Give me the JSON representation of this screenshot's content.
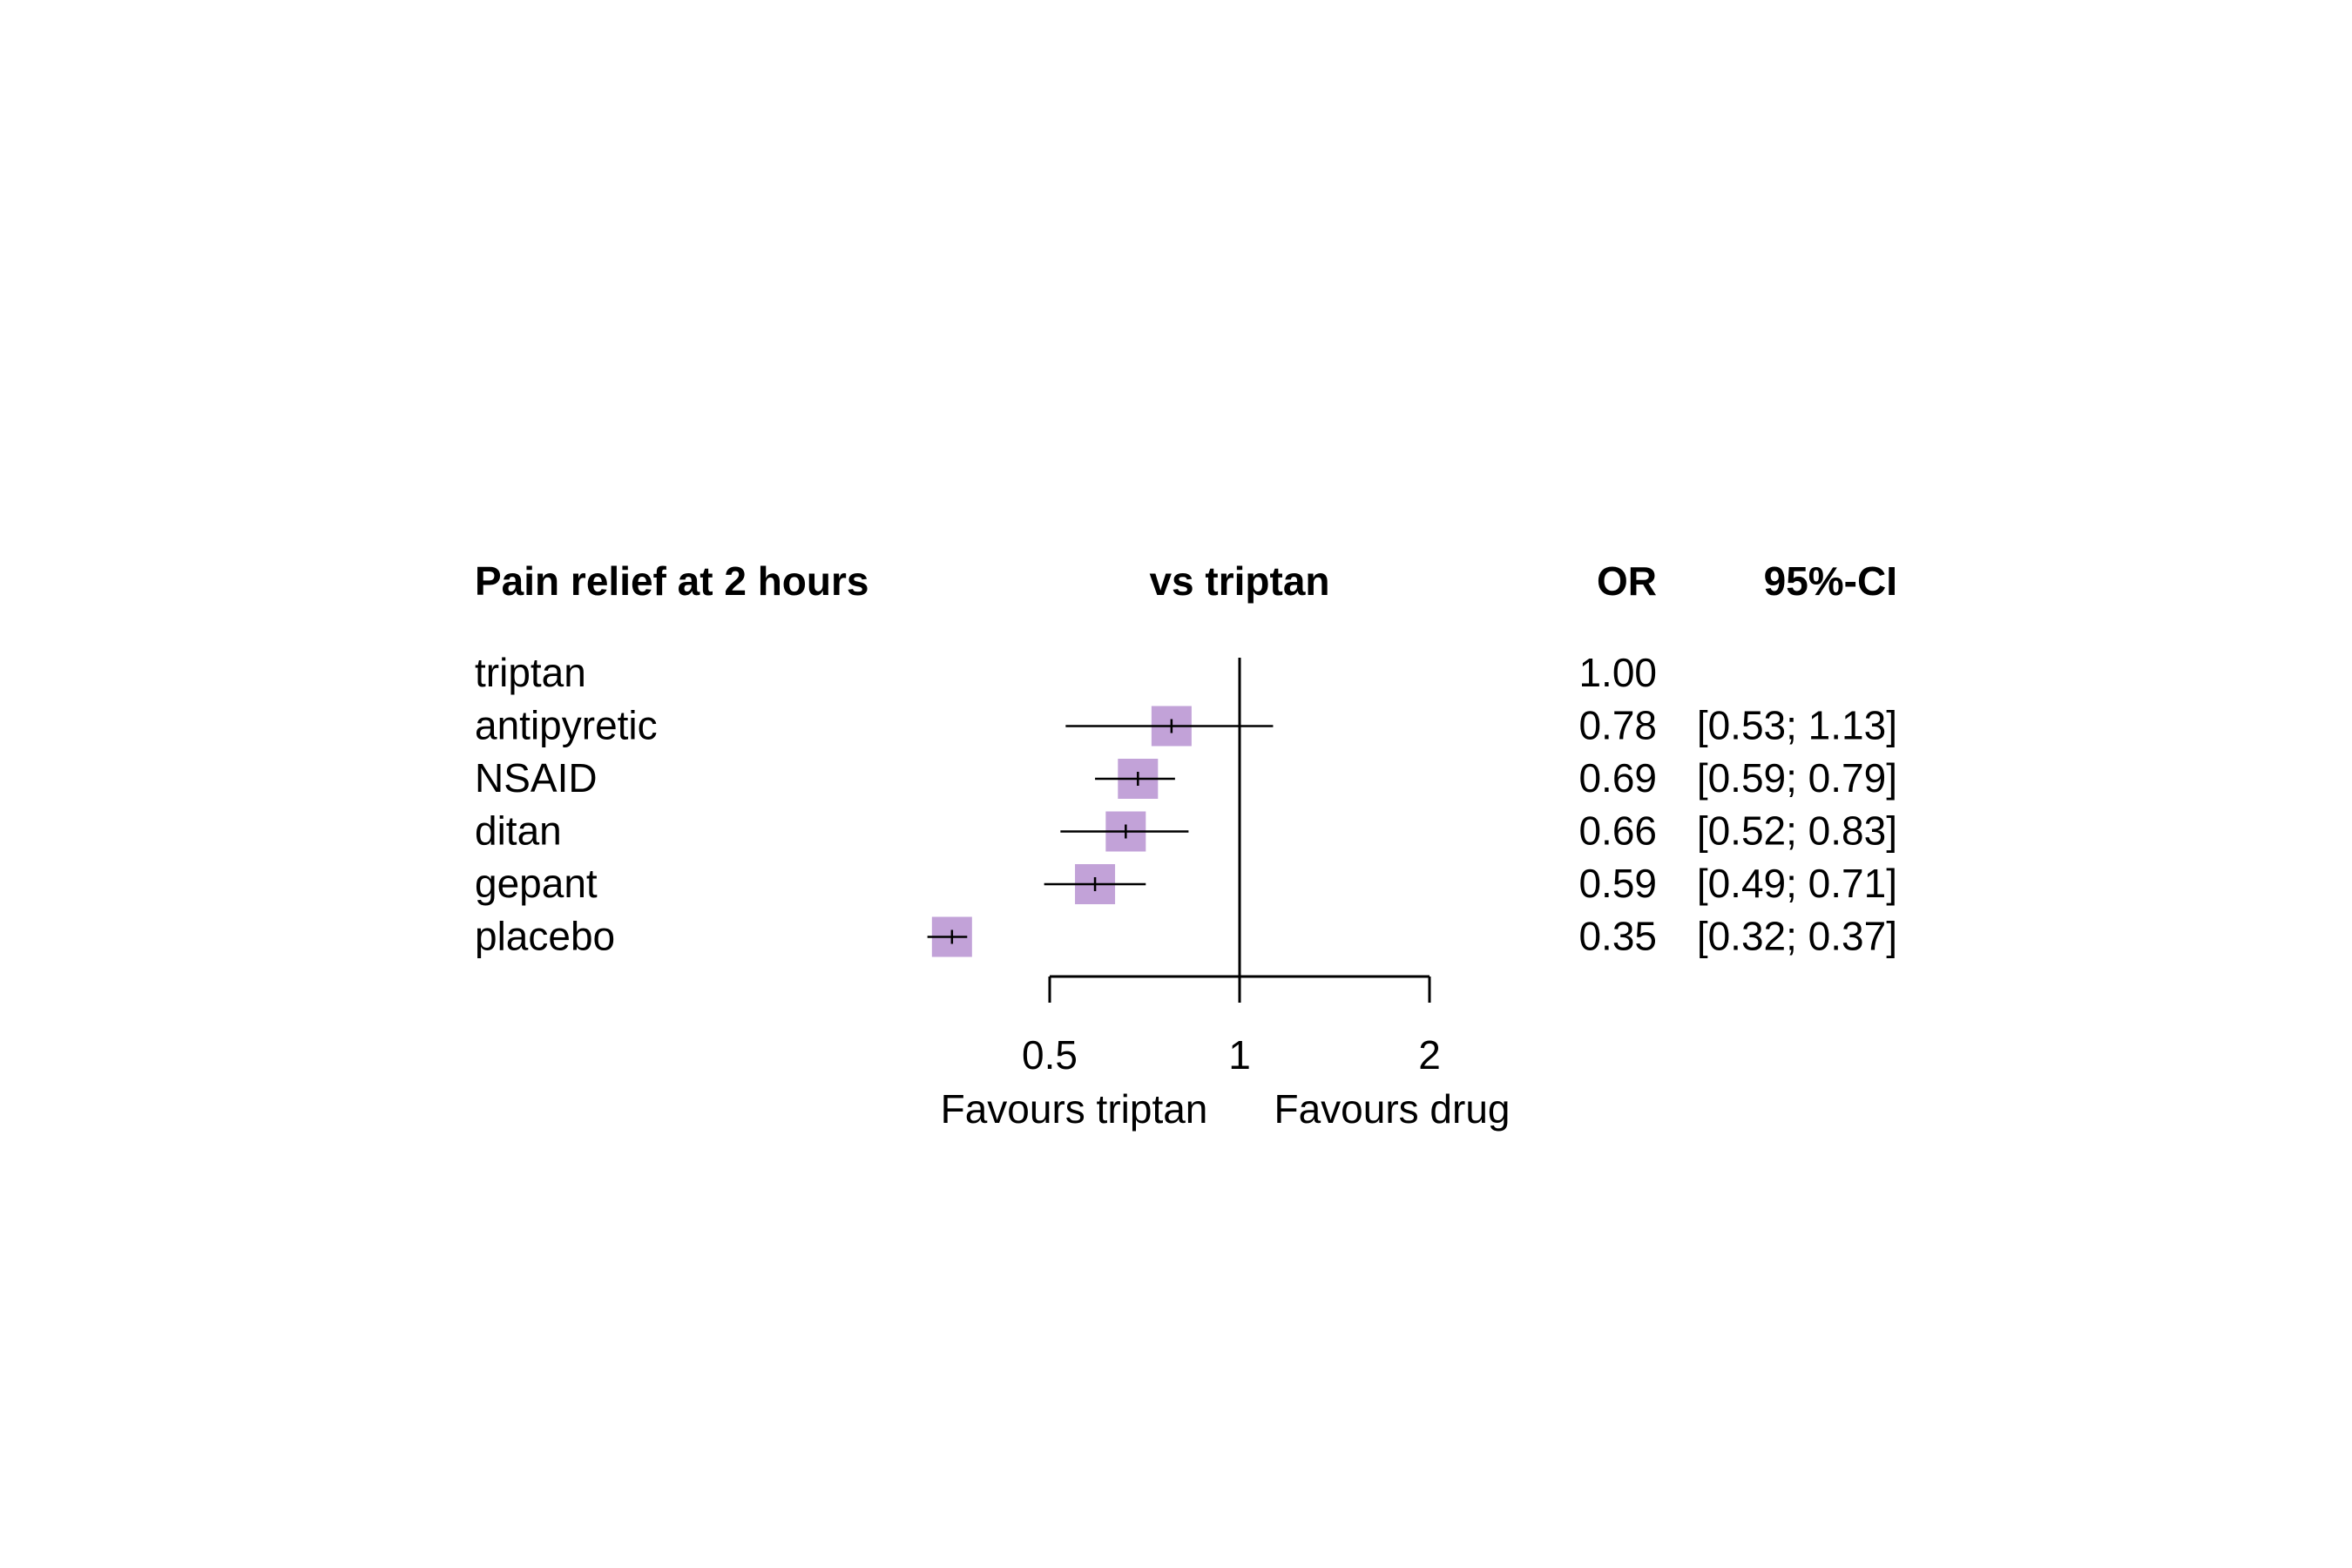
{
  "chart_data": {
    "type": "forest",
    "title": "Pain relief at 2 hours",
    "comparison_header": "vs triptan",
    "or_header": "OR",
    "ci_header": "95%-CI",
    "scale": "log",
    "xlim": [
      0.35,
      2
    ],
    "xticks": [
      0.5,
      1,
      2
    ],
    "xtick_labels": [
      "0.5",
      "1",
      "2"
    ],
    "reference_line": 1,
    "left_label": "Favours triptan",
    "right_label": "Favours drug",
    "marker_color": "#c2a2d8",
    "rows": [
      {
        "treatment": "triptan",
        "or": 1.0,
        "lower": null,
        "upper": null,
        "or_text": "1.00",
        "ci_text": ""
      },
      {
        "treatment": "antipyretic",
        "or": 0.78,
        "lower": 0.53,
        "upper": 1.13,
        "or_text": "0.78",
        "ci_text": "[0.53; 1.13]"
      },
      {
        "treatment": "NSAID",
        "or": 0.69,
        "lower": 0.59,
        "upper": 0.79,
        "or_text": "0.69",
        "ci_text": "[0.59; 0.79]"
      },
      {
        "treatment": "ditan",
        "or": 0.66,
        "lower": 0.52,
        "upper": 0.83,
        "or_text": "0.66",
        "ci_text": "[0.52; 0.83]"
      },
      {
        "treatment": "gepant",
        "or": 0.59,
        "lower": 0.49,
        "upper": 0.71,
        "or_text": "0.59",
        "ci_text": "[0.49; 0.71]"
      },
      {
        "treatment": "placebo",
        "or": 0.35,
        "lower": 0.32,
        "upper": 0.37,
        "or_text": "0.35",
        "ci_text": "[0.32; 0.37]"
      }
    ]
  }
}
